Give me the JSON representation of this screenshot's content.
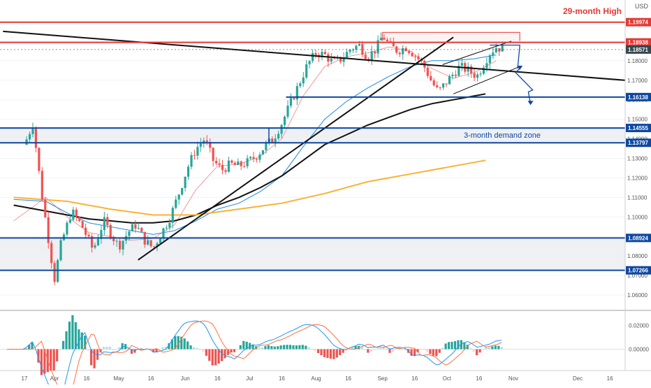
{
  "chart_data": {
    "type": "candlestick",
    "currency": "USD",
    "price_range": [
      1.055,
      1.205
    ],
    "price_ticks": [
      "1.06000",
      "1.07000",
      "1.08000",
      "1.09000",
      "1.10000",
      "1.11000",
      "1.12000",
      "1.13000",
      "1.14000",
      "1.15000",
      "1.16000",
      "1.17000",
      "1.18000",
      "1.19000",
      "1.20000"
    ],
    "x_labels": [
      {
        "label": "17",
        "day": 0
      },
      {
        "label": "Apr",
        "day": 14
      },
      {
        "label": "16",
        "day": 29
      },
      {
        "label": "May",
        "day": 44
      },
      {
        "label": "16",
        "day": 59
      },
      {
        "label": "Jun",
        "day": 75
      },
      {
        "label": "16",
        "day": 90
      },
      {
        "label": "Jul",
        "day": 105
      },
      {
        "label": "16",
        "day": 120
      },
      {
        "label": "Aug",
        "day": 136
      },
      {
        "label": "16",
        "day": 151
      },
      {
        "label": "Sep",
        "day": 167
      },
      {
        "label": "16",
        "day": 182
      },
      {
        "label": "Oct",
        "day": 197
      },
      {
        "label": "16",
        "day": 212
      },
      {
        "label": "Nov",
        "day": 228
      },
      {
        "label": "Dec",
        "day": 258
      },
      {
        "label": "16",
        "day": 273
      }
    ],
    "last_day": 223,
    "last_price": "1.18571",
    "levels": [
      {
        "price": 1.19974,
        "label": "1.19974",
        "color": "#e53935"
      },
      {
        "price": 1.18938,
        "label": "1.18938",
        "color": "#e53935"
      },
      {
        "price": 1.18571,
        "label": "1.18571",
        "color": "#37474f"
      },
      {
        "price": 1.16138,
        "label": "1.16138",
        "color": "#0d47a1"
      },
      {
        "price": 1.14555,
        "label": "1.14555",
        "color": "#0d47a1"
      },
      {
        "price": 1.13797,
        "label": "1.13797",
        "color": "#0d47a1"
      },
      {
        "price": 1.08924,
        "label": "1.08924",
        "color": "#0d47a1"
      },
      {
        "price": 1.07266,
        "label": "1.07266",
        "color": "#0d47a1"
      }
    ],
    "annotations": {
      "high_label": "29-month High",
      "zone_label": "3-month demand zone"
    },
    "close_path": [
      [
        0,
        1.137
      ],
      [
        4,
        1.148
      ],
      [
        8,
        1.112
      ],
      [
        11,
        1.09
      ],
      [
        14,
        1.068
      ],
      [
        17,
        1.086
      ],
      [
        22,
        1.103
      ],
      [
        27,
        1.095
      ],
      [
        32,
        1.083
      ],
      [
        37,
        1.098
      ],
      [
        41,
        1.09
      ],
      [
        44,
        1.085
      ],
      [
        49,
        1.093
      ],
      [
        52,
        1.096
      ],
      [
        56,
        1.088
      ],
      [
        60,
        1.084
      ],
      [
        64,
        1.092
      ],
      [
        68,
        1.1
      ],
      [
        72,
        1.112
      ],
      [
        76,
        1.125
      ],
      [
        80,
        1.135
      ],
      [
        84,
        1.14
      ],
      [
        88,
        1.129
      ],
      [
        92,
        1.124
      ],
      [
        96,
        1.127
      ],
      [
        100,
        1.126
      ],
      [
        104,
        1.128
      ],
      [
        108,
        1.131
      ],
      [
        112,
        1.136
      ],
      [
        116,
        1.14
      ],
      [
        120,
        1.148
      ],
      [
        124,
        1.158
      ],
      [
        128,
        1.168
      ],
      [
        132,
        1.178
      ],
      [
        136,
        1.184
      ],
      [
        140,
        1.183
      ],
      [
        144,
        1.179
      ],
      [
        148,
        1.181
      ],
      [
        152,
        1.186
      ],
      [
        156,
        1.188
      ],
      [
        160,
        1.182
      ],
      [
        164,
        1.186
      ],
      [
        167,
        1.193
      ],
      [
        170,
        1.188
      ],
      [
        174,
        1.185
      ],
      [
        178,
        1.187
      ],
      [
        182,
        1.183
      ],
      [
        186,
        1.178
      ],
      [
        190,
        1.169
      ],
      [
        193,
        1.164
      ],
      [
        196,
        1.168
      ],
      [
        199,
        1.172
      ],
      [
        203,
        1.177
      ],
      [
        207,
        1.175
      ],
      [
        211,
        1.172
      ],
      [
        214,
        1.178
      ],
      [
        217,
        1.184
      ],
      [
        220,
        1.187
      ],
      [
        223,
        1.186
      ]
    ],
    "moving_averages": [
      {
        "color": "#ef9a9a",
        "width": 1,
        "points": [
          [
            -5,
            1.098
          ],
          [
            10,
            1.11
          ],
          [
            20,
            1.1
          ],
          [
            30,
            1.092
          ],
          [
            40,
            1.09
          ],
          [
            50,
            1.088
          ],
          [
            60,
            1.089
          ],
          [
            70,
            1.096
          ],
          [
            80,
            1.114
          ],
          [
            90,
            1.126
          ],
          [
            100,
            1.127
          ],
          [
            110,
            1.131
          ],
          [
            120,
            1.14
          ],
          [
            130,
            1.162
          ],
          [
            140,
            1.177
          ],
          [
            150,
            1.182
          ],
          [
            160,
            1.184
          ],
          [
            170,
            1.187
          ],
          [
            180,
            1.185
          ],
          [
            190,
            1.176
          ],
          [
            200,
            1.171
          ],
          [
            210,
            1.174
          ],
          [
            220,
            1.18
          ]
        ]
      },
      {
        "color": "#1e88e5",
        "width": 1,
        "points": [
          [
            -5,
            1.109
          ],
          [
            10,
            1.108
          ],
          [
            20,
            1.102
          ],
          [
            30,
            1.097
          ],
          [
            40,
            1.095
          ],
          [
            50,
            1.093
          ],
          [
            60,
            1.091
          ],
          [
            70,
            1.093
          ],
          [
            80,
            1.098
          ],
          [
            90,
            1.104
          ],
          [
            100,
            1.107
          ],
          [
            110,
            1.113
          ],
          [
            120,
            1.121
          ],
          [
            130,
            1.136
          ],
          [
            140,
            1.15
          ],
          [
            150,
            1.159
          ],
          [
            160,
            1.166
          ],
          [
            170,
            1.172
          ],
          [
            180,
            1.177
          ],
          [
            190,
            1.18
          ],
          [
            200,
            1.18
          ],
          [
            210,
            1.181
          ],
          [
            220,
            1.183
          ]
        ]
      },
      {
        "color": "#111111",
        "width": 2,
        "points": [
          [
            -5,
            1.106
          ],
          [
            10,
            1.103
          ],
          [
            20,
            1.101
          ],
          [
            30,
            1.099
          ],
          [
            40,
            1.098
          ],
          [
            50,
            1.097
          ],
          [
            60,
            1.097
          ],
          [
            70,
            1.098
          ],
          [
            80,
            1.101
          ],
          [
            90,
            1.106
          ],
          [
            100,
            1.11
          ],
          [
            110,
            1.115
          ],
          [
            120,
            1.121
          ],
          [
            130,
            1.129
          ],
          [
            140,
            1.137
          ],
          [
            150,
            1.142
          ],
          [
            160,
            1.147
          ],
          [
            170,
            1.151
          ],
          [
            180,
            1.155
          ],
          [
            190,
            1.158
          ],
          [
            200,
            1.16
          ],
          [
            210,
            1.162
          ],
          [
            215,
            1.163
          ]
        ]
      },
      {
        "color": "#f9b233",
        "width": 2,
        "points": [
          [
            -5,
            1.11
          ],
          [
            20,
            1.108
          ],
          [
            40,
            1.104
          ],
          [
            60,
            1.101
          ],
          [
            80,
            1.101
          ],
          [
            100,
            1.104
          ],
          [
            120,
            1.107
          ],
          [
            140,
            1.112
          ],
          [
            160,
            1.118
          ],
          [
            180,
            1.122
          ],
          [
            200,
            1.126
          ],
          [
            215,
            1.129
          ]
        ]
      }
    ],
    "trendlines": [
      {
        "color": "#111111",
        "width": 2,
        "points": [
          [
            -10,
            1.195
          ],
          [
            280,
            1.17
          ]
        ]
      },
      {
        "color": "#111111",
        "width": 2,
        "points": [
          [
            53,
            1.078
          ],
          [
            200,
            1.192
          ]
        ]
      },
      {
        "color": "#111111",
        "width": 1,
        "points": [
          [
            200,
            1.163
          ],
          [
            231,
            1.177
          ]
        ]
      },
      {
        "color": "#111111",
        "width": 1,
        "points": [
          [
            195,
            1.178
          ],
          [
            227,
            1.19
          ]
        ]
      },
      {
        "color": "#0d47a1",
        "width": 1.3,
        "points": [
          [
            217,
            1.188
          ],
          [
            231,
            1.188
          ],
          [
            230,
            1.176
          ]
        ]
      },
      {
        "color": "#0d47a1",
        "width": 1.3,
        "points": [
          [
            231,
            1.176
          ],
          [
            229,
            1.174
          ],
          [
            237,
            1.165
          ],
          [
            235,
            1.164
          ],
          [
            236,
            1.158
          ]
        ]
      }
    ],
    "macd": {
      "range": [
        -0.006,
        0.01
      ],
      "ticks": [
        "0.02000",
        "0.00000"
      ]
    }
  }
}
